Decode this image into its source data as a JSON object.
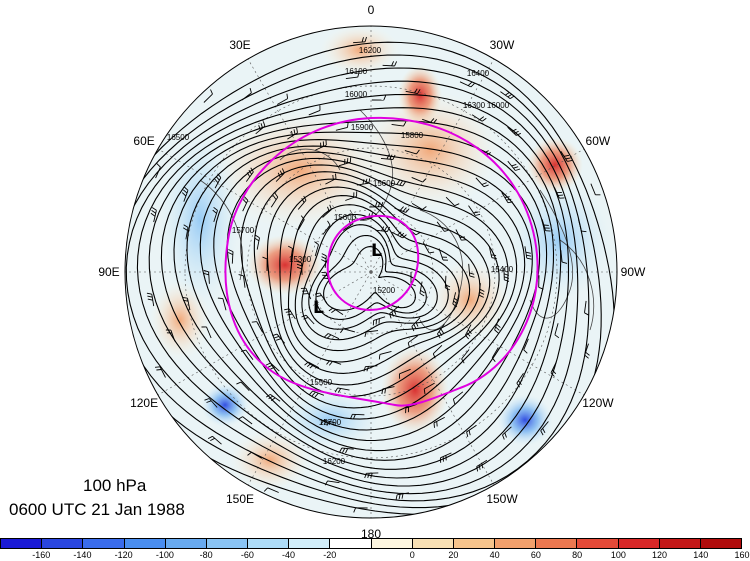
{
  "title": {
    "level": "100 hPa",
    "time": "0600 UTC 21 Jan 1988"
  },
  "longitude_labels": [
    {
      "text": "0",
      "lon": 0
    },
    {
      "text": "30W",
      "lon": -30
    },
    {
      "text": "60W",
      "lon": -60
    },
    {
      "text": "90W",
      "lon": -90
    },
    {
      "text": "120W",
      "lon": -120
    },
    {
      "text": "150W",
      "lon": -150
    },
    {
      "text": "180",
      "lon": 180
    },
    {
      "text": "150E",
      "lon": 150
    },
    {
      "text": "120E",
      "lon": 120
    },
    {
      "text": "90E",
      "lon": 90
    },
    {
      "text": "60E",
      "lon": 60
    },
    {
      "text": "30E",
      "lon": 30
    }
  ],
  "contour_labels": [
    "16200",
    "16100",
    "16000",
    "16400",
    "16300",
    "16500",
    "15900",
    "15800",
    "15600",
    "15700",
    "15500",
    "15300",
    "15200",
    "15400",
    "16600"
  ],
  "low_centers": [
    "L",
    "L"
  ],
  "colorbar": {
    "colors": [
      "#1a1ad6",
      "#2a46e0",
      "#3a6cec",
      "#4a8ef0",
      "#68aaf0",
      "#8ac4f4",
      "#aedcf8",
      "#d2eefa",
      "#fdf6e0",
      "#f8e0b4",
      "#f6c48c",
      "#f2a06c",
      "#ec7850",
      "#e44a38",
      "#d82828",
      "#c41818",
      "#b00c0c"
    ],
    "tick_labels": [
      "-160",
      "-140",
      "-120",
      "-100",
      "-80",
      "-60",
      "-40",
      "-20",
      "0",
      "20",
      "40",
      "60",
      "80",
      "100",
      "120",
      "140",
      "160"
    ]
  },
  "colors": {
    "contour": "#000000",
    "polar_vortex_ring": "#e000e0",
    "coastline": "#444444"
  }
}
